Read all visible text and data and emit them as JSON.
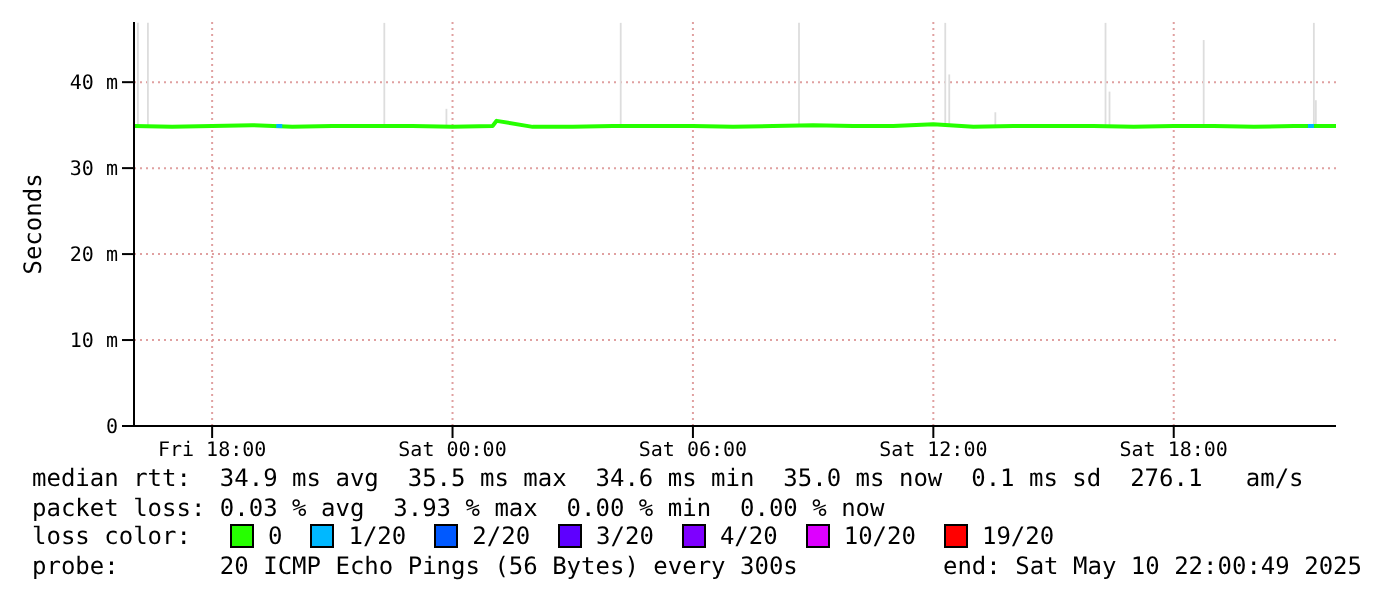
{
  "chart_data": {
    "type": "line",
    "ylabel": "Seconds",
    "xlim": [
      "2025-05-09T16:03",
      "2025-05-10T22:03"
    ],
    "xticks": [
      {
        "value": "2025-05-09T18:00",
        "label": "Fri 18:00"
      },
      {
        "value": "2025-05-10T00:00",
        "label": "Sat 00:00"
      },
      {
        "value": "2025-05-10T06:00",
        "label": "Sat 06:00"
      },
      {
        "value": "2025-05-10T12:00",
        "label": "Sat 12:00"
      },
      {
        "value": "2025-05-10T18:00",
        "label": "Sat 18:00"
      }
    ],
    "ylim": [
      0,
      47
    ],
    "yticks": [
      0,
      {
        "value": 10,
        "label": "10 m"
      },
      {
        "value": 20,
        "label": "20 m"
      },
      {
        "value": 30,
        "label": "30 m"
      },
      {
        "value": 40,
        "label": "40 m"
      }
    ],
    "grid": true,
    "legend": "bottom",
    "legend_title": "loss color:",
    "series": [
      {
        "type": "bar",
        "color": "#dddddd",
        "x": [
          "2025-05-09T16:09",
          "2025-05-09T16:24",
          "2025-05-09T22:18",
          "2025-05-09T23:51",
          "2025-05-10T04:12",
          "2025-05-10T08:39",
          "2025-05-10T12:18",
          "2025-05-10T12:24",
          "2025-05-10T13:33",
          "2025-05-10T16:18",
          "2025-05-10T16:24",
          "2025-05-10T18:45",
          "2025-05-10T21:30",
          "2025-05-10T21:33"
        ],
        "base": [
          34.9,
          34.9,
          34.9,
          34.9,
          34.9,
          34.9,
          34.9,
          34.9,
          34.9,
          34.9,
          34.9,
          34.9,
          34.9,
          34.9
        ],
        "values": [
          12,
          12,
          12,
          2,
          12,
          12,
          12,
          6,
          1.6,
          12,
          4,
          10,
          12,
          3
        ]
      },
      {
        "name": "0",
        "color": "#26ff00",
        "x": [
          "2025-05-09T16:03",
          "2025-05-09T17:00",
          "2025-05-09T18:00",
          "2025-05-09T19:00",
          "2025-05-09T20:00",
          "2025-05-09T21:00",
          "2025-05-09T22:00",
          "2025-05-09T23:00",
          "2025-05-10T00:00",
          "2025-05-10T01:00",
          "2025-05-10T01:06",
          "2025-05-10T02:00",
          "2025-05-10T03:00",
          "2025-05-10T04:00",
          "2025-05-10T05:00",
          "2025-05-10T06:00",
          "2025-05-10T07:00",
          "2025-05-10T08:00",
          "2025-05-10T09:00",
          "2025-05-10T10:00",
          "2025-05-10T11:00",
          "2025-05-10T12:00",
          "2025-05-10T13:00",
          "2025-05-10T14:00",
          "2025-05-10T15:00",
          "2025-05-10T16:00",
          "2025-05-10T17:00",
          "2025-05-10T18:00",
          "2025-05-10T19:00",
          "2025-05-10T20:00",
          "2025-05-10T21:00",
          "2025-05-10T22:03"
        ],
        "values": [
          34.9,
          34.8,
          34.9,
          35.0,
          34.8,
          34.9,
          34.9,
          34.9,
          34.8,
          34.9,
          35.5,
          34.8,
          34.8,
          34.9,
          34.9,
          34.9,
          34.8,
          34.9,
          35.0,
          34.9,
          34.9,
          35.1,
          34.8,
          34.9,
          34.9,
          34.9,
          34.8,
          34.9,
          34.9,
          34.8,
          34.9,
          34.9
        ]
      },
      {
        "name": "1/20",
        "color": "#00b8ff",
        "x": [
          "2025-05-09T19:36",
          "2025-05-09T19:45",
          "2025-05-09T19:48",
          "2025-05-10T21:21",
          "2025-05-10T21:30"
        ],
        "values": [
          34.9,
          34.9,
          null,
          34.9,
          34.9
        ]
      },
      {
        "name": "2/20",
        "color": "#0059ff"
      },
      {
        "name": "3/20",
        "color": "#5e00ff"
      },
      {
        "name": "4/20",
        "color": "#7e00ff"
      },
      {
        "name": "10/20",
        "color": "#dd00ff"
      },
      {
        "name": "19/20",
        "color": "#ff0000"
      }
    ],
    "annotations": [
      "median rtt:  34.9 ms avg  35.5 ms max  34.6 ms min  35.0 ms now  0.1 ms sd  276.1   am/s",
      "packet loss: 0.03 % avg  3.93 % max  0.00 % min  0.00 % now",
      "probe:       20 ICMP Echo Pings (56 Bytes) every 300s",
      "end: Sat May 10 22:00:49 2025"
    ]
  }
}
